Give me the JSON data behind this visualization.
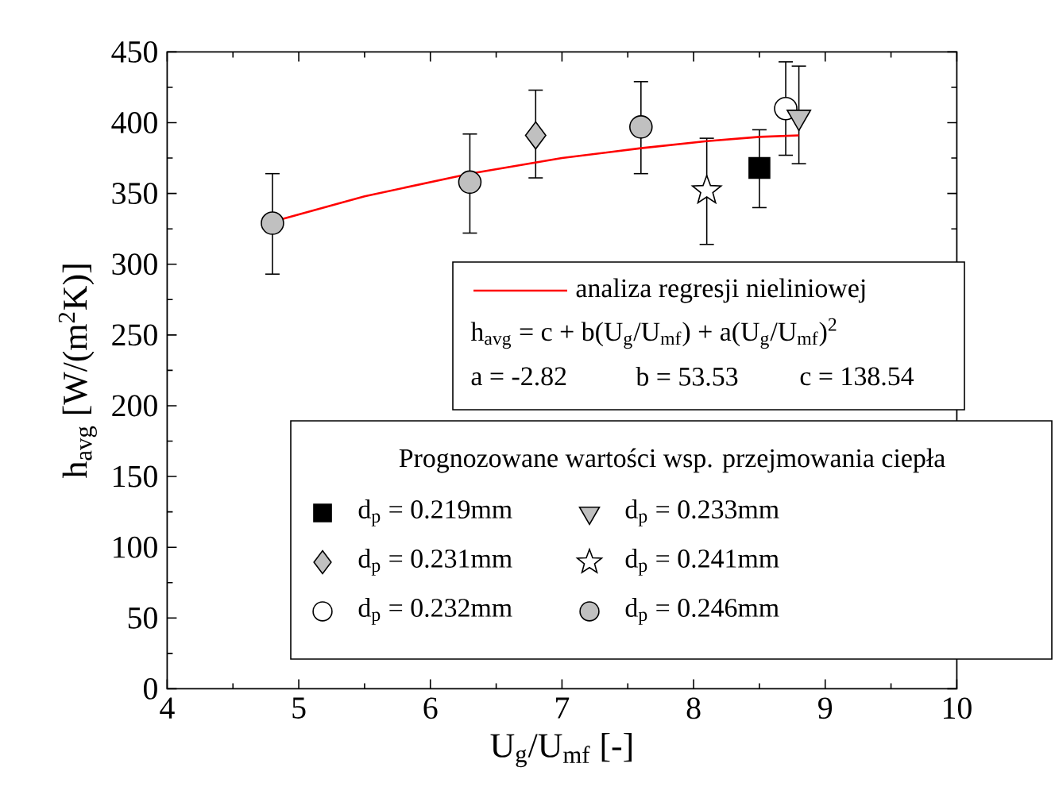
{
  "chart_data": {
    "type": "scatter",
    "xlabel": "U$_{g}$/U$_{mf}$ [-]",
    "ylabel": "h$_{avg}$ [W/(m$^{2}$K)]",
    "xlim": [
      4,
      10
    ],
    "xticks": [
      4,
      5,
      6,
      7,
      8,
      9,
      10
    ],
    "ylim": [
      0,
      450
    ],
    "yticks": [
      0,
      50,
      100,
      150,
      200,
      250,
      300,
      350,
      400,
      450
    ],
    "legend": "bottom right",
    "legend_title": "Prognozowane wartości wsp. przejmowania ciepła",
    "annotations": [
      "h$_{avg}$ = c + b(U$_{g}$/U$_{mf}$) + a(U$_{g}$/U$_{mf}$)$^{2}$",
      "a = -2.82",
      "b = 53.53",
      "c = 138.54"
    ],
    "series": [
      {
        "name": "d$_{p}$ = 0.219mm",
        "marker": "square",
        "color": "#000000",
        "x": [
          8.5
        ],
        "values": [
          368
        ],
        "errors": [
          [
            340,
            395
          ]
        ]
      },
      {
        "name": "d$_{p}$ = 0.231mm",
        "marker": "diamond",
        "color": "#c0c0c0",
        "x": [
          6.8
        ],
        "values": [
          391
        ],
        "errors": [
          [
            361,
            423
          ]
        ]
      },
      {
        "name": "d$_{p}$ = 0.232mm",
        "marker": "circle",
        "color": "#ffffff",
        "x": [
          8.7
        ],
        "values": [
          410
        ],
        "errors": [
          [
            377,
            443
          ]
        ]
      },
      {
        "name": "d$_{p}$ = 0.233mm",
        "marker": "triangle",
        "color": "#c0c0c0",
        "x": [
          8.8
        ],
        "values": [
          404
        ],
        "errors": [
          [
            371,
            440
          ]
        ]
      },
      {
        "name": "d$_{p}$ = 0.241mm",
        "marker": "star",
        "color": "#ffffff",
        "x": [
          8.1
        ],
        "values": [
          352
        ],
        "errors": [
          [
            314,
            389
          ]
        ]
      },
      {
        "name": "d$_{p}$ = 0.246mm",
        "marker": "circle",
        "color": "#c0c0c0",
        "x": [
          4.8,
          6.3,
          7.6
        ],
        "values": [
          329,
          358,
          397
        ],
        "errors": [
          [
            293,
            364
          ],
          [
            322,
            392
          ],
          [
            364,
            429
          ]
        ]
      },
      {
        "name": "analiza regresji nieliniowej",
        "type": "line",
        "marker": "none",
        "color": "#ff0000",
        "x": [
          4.8,
          5.5,
          6.3,
          7.0,
          7.6,
          8.1,
          8.5,
          8.8
        ],
        "values": [
          330,
          348,
          364,
          375,
          382,
          387,
          390,
          391
        ]
      }
    ]
  }
}
